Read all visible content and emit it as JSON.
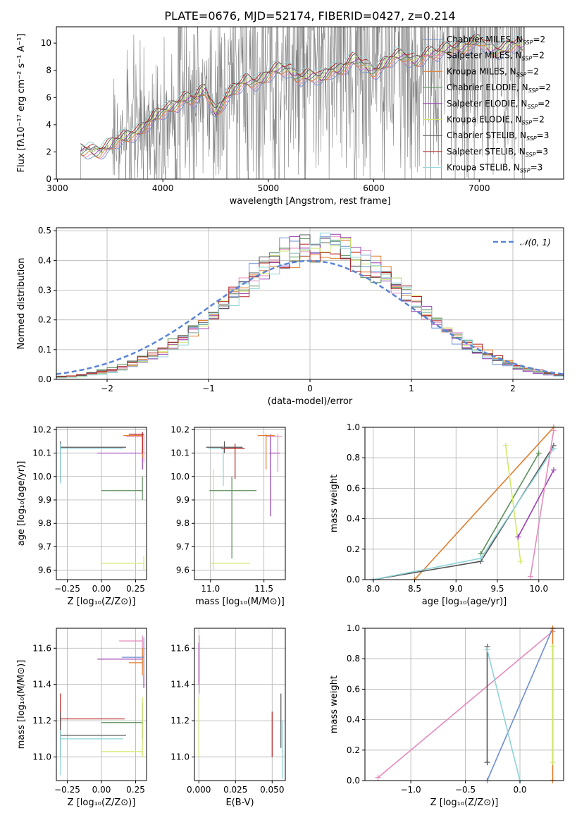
{
  "figure": {
    "title": "PLATE=0676, MJD=52174, FIBERID=0427, z=0.214"
  },
  "colors": {
    "chabrier_miles": "#6f8fd0",
    "salpeter_miles": "#e58bbd",
    "kroupa_miles": "#e07d2e",
    "chabrier_elodie": "#5a8f5a",
    "salpeter_elodie": "#9a3fb3",
    "kroupa_elodie": "#cfe86a",
    "chabrier_stelib": "#555555",
    "salpeter_stelib": "#b22222",
    "kroupa_stelib": "#8fd3d8",
    "data": "#808080",
    "normal": "#5a85d6"
  },
  "chart_data": [
    {
      "type": "line",
      "title": "PLATE=0676, MJD=52174, FIBERID=0427, z=0.214",
      "xlabel": "wavelength [Angstrom, rest frame]",
      "ylabel": "Flux [fλ10⁻¹⁷ erg cm⁻² s⁻¹ A⁻¹]",
      "xlim": [
        2990,
        7800
      ],
      "ylim": [
        0,
        11.2
      ],
      "xticks": [
        3000,
        4000,
        5000,
        6000,
        7000
      ],
      "yticks": [
        0,
        2,
        4,
        6,
        8,
        10
      ],
      "grid": false,
      "legend_position": "top-right",
      "legend": [
        {
          "label": "Chabrier MILES, N",
          "sub": "SSP",
          "suffix": "=2",
          "color_key": "chabrier_miles"
        },
        {
          "label": "Salpeter MILES, N",
          "sub": "SSP",
          "suffix": "=2",
          "color_key": "salpeter_miles"
        },
        {
          "label": "Kroupa MILES, N",
          "sub": "SSP",
          "suffix": "=2",
          "color_key": "kroupa_miles"
        },
        {
          "label": "Chabrier ELODIE, N",
          "sub": "SSP",
          "suffix": "=2",
          "color_key": "chabrier_elodie"
        },
        {
          "label": "Salpeter ELODIE, N",
          "sub": "SSP",
          "suffix": "=2",
          "color_key": "salpeter_elodie"
        },
        {
          "label": "Kroupa ELODIE, N",
          "sub": "SSP",
          "suffix": "=2",
          "color_key": "kroupa_elodie"
        },
        {
          "label": "Chabrier STELIB, N",
          "sub": "SSP",
          "suffix": "=3",
          "color_key": "chabrier_stelib"
        },
        {
          "label": "Salpeter STELIB, N",
          "sub": "SSP",
          "suffix": "=3",
          "color_key": "salpeter_stelib"
        },
        {
          "label": "Kroupa STELIB, N",
          "sub": "SSP",
          "suffix": "=3",
          "color_key": "kroupa_stelib"
        }
      ],
      "model_continuum": {
        "x": [
          3220,
          3300,
          3400,
          3500,
          3600,
          3700,
          3800,
          3900,
          4000,
          4100,
          4200,
          4300,
          4400,
          4500,
          4600,
          4700,
          4800,
          4900,
          5000,
          5100,
          5200,
          5300,
          5400,
          5500,
          5600,
          5700,
          5800,
          5900,
          6000,
          6100,
          6200,
          6300,
          6400,
          6500,
          6600,
          6700,
          6800,
          6900,
          7000,
          7100,
          7200,
          7300,
          7400
        ],
        "y": [
          2.0,
          2.3,
          2.2,
          2.3,
          2.8,
          3.5,
          3.8,
          4.2,
          4.9,
          5.6,
          6.0,
          5.6,
          6.6,
          5.1,
          6.0,
          6.5,
          7.3,
          7.4,
          7.6,
          7.9,
          8.1,
          7.7,
          7.5,
          7.2,
          8.2,
          8.3,
          8.6,
          8.3,
          8.1,
          8.6,
          8.8,
          8.9,
          8.9,
          9.3,
          9.0,
          9.6,
          9.9,
          9.8,
          10.0,
          9.6,
          9.7,
          9.8,
          9.6
        ]
      },
      "observed_noise_range": [
        3520,
        7430
      ]
    },
    {
      "type": "line",
      "xlabel": "(data-model)/error",
      "ylabel": "Normed distribution",
      "xlim": [
        -2.5,
        2.5
      ],
      "ylim": [
        0,
        0.51
      ],
      "xticks": [
        -2,
        -1,
        0,
        1,
        2
      ],
      "yticks": [
        0.0,
        0.1,
        0.2,
        0.3,
        0.4,
        0.5
      ],
      "grid": true,
      "legend_position": "top-right",
      "legend_label": "𝒩(0, 1)",
      "normal_curve": {
        "mean": 0,
        "std": 1,
        "style": "dashed"
      },
      "histogram_bin_width": 0.1
    },
    {
      "type": "scatter",
      "xlabel": "Z [log₁₀(Z/Z⊙)]",
      "ylabel": "age  [log₁₀(age/yr)]",
      "xlim": [
        -0.33,
        0.33
      ],
      "ylim": [
        9.56,
        10.21
      ],
      "xticks": [
        -0.25,
        0.0,
        0.25
      ],
      "yticks": [
        9.6,
        9.7,
        9.8,
        9.9,
        10.0,
        10.1,
        10.2
      ],
      "grid": true
    },
    {
      "type": "scatter",
      "xlabel": "mass [log₁₀(M/M⊙)]",
      "xlim": [
        10.85,
        11.7
      ],
      "ylim": [
        9.56,
        10.21
      ],
      "xticks": [
        11.0,
        11.5
      ],
      "yticks": [
        9.6,
        9.7,
        9.8,
        9.9,
        10.0,
        10.1,
        10.2
      ],
      "grid": true
    },
    {
      "type": "line",
      "xlabel": "age  [log₁₀(age/yr)]",
      "ylabel": "mass weight",
      "xlim": [
        7.9,
        10.3
      ],
      "ylim": [
        0,
        1.0
      ],
      "xticks": [
        8.0,
        8.5,
        9.0,
        9.5,
        10.0
      ],
      "yticks": [
        0.0,
        0.2,
        0.4,
        0.6,
        0.8,
        1.0
      ],
      "grid": true,
      "series": [
        {
          "color_key": "kroupa_miles",
          "x": [
            8.5,
            10.18
          ],
          "y": [
            0.0,
            1.0
          ]
        },
        {
          "color_key": "chabrier_elodie",
          "x": [
            9.3,
            10.0
          ],
          "y": [
            0.17,
            0.83
          ]
        },
        {
          "color_key": "chabrier_stelib",
          "x": [
            8.0,
            9.3,
            10.18
          ],
          "y": [
            0.0,
            0.12,
            0.88
          ]
        },
        {
          "color_key": "kroupa_stelib",
          "x": [
            8.0,
            9.3,
            10.18
          ],
          "y": [
            0.0,
            0.14,
            0.86
          ]
        },
        {
          "color_key": "kroupa_elodie",
          "x": [
            9.6,
            9.78
          ],
          "y": [
            0.88,
            0.12
          ]
        },
        {
          "color_key": "salpeter_elodie",
          "x": [
            9.75,
            10.18
          ],
          "y": [
            0.28,
            0.72
          ]
        },
        {
          "color_key": "salpeter_miles",
          "x": [
            9.9,
            10.18
          ],
          "y": [
            0.02,
            0.98
          ]
        }
      ]
    },
    {
      "type": "scatter",
      "xlabel": "Z [log₁₀(Z/Z⊙)]",
      "ylabel": "mass [log₁₀(M/M⊙)]",
      "xlim": [
        -0.33,
        0.33
      ],
      "ylim": [
        10.87,
        11.71
      ],
      "xticks": [
        -0.25,
        0.0,
        0.25
      ],
      "yticks": [
        11.0,
        11.2,
        11.4,
        11.6
      ],
      "grid": true
    },
    {
      "type": "scatter",
      "xlabel": "E(B-V)",
      "xlim": [
        -0.003,
        0.059
      ],
      "ylim": [
        10.87,
        11.71
      ],
      "xticks": [
        0.0,
        0.025,
        0.05
      ],
      "yticks": [
        11.0,
        11.2,
        11.4,
        11.6
      ],
      "grid": true
    },
    {
      "type": "line",
      "xlabel": "Z [log₁₀(Z/Z⊙)]",
      "ylabel": "mass weight",
      "xlim": [
        -1.42,
        0.4
      ],
      "ylim": [
        0,
        1.0
      ],
      "xticks": [
        -1.0,
        -0.5,
        0.0
      ],
      "yticks": [
        0.0,
        0.2,
        0.4,
        0.6,
        0.8,
        1.0
      ],
      "grid": true,
      "series": [
        {
          "color_key": "salpeter_miles",
          "x": [
            -1.3,
            0.3
          ],
          "y": [
            0.02,
            0.98
          ]
        },
        {
          "color_key": "chabrier_miles",
          "x": [
            -0.3,
            0.3
          ],
          "y": [
            0.0,
            1.0
          ]
        },
        {
          "color_key": "chabrier_stelib",
          "x": [
            -0.3,
            -0.3,
            -0.3
          ],
          "y": [
            0.12,
            0.88,
            0.12
          ]
        },
        {
          "color_key": "kroupa_stelib",
          "x": [
            -0.3,
            0.0
          ],
          "y": [
            0.86,
            0.0
          ]
        },
        {
          "color_key": "kroupa_miles",
          "x": [
            0.3,
            0.3
          ],
          "y": [
            0.0,
            1.0
          ]
        },
        {
          "color_key": "kroupa_elodie",
          "x": [
            0.3,
            0.3
          ],
          "y": [
            0.12,
            0.88
          ]
        }
      ]
    }
  ]
}
